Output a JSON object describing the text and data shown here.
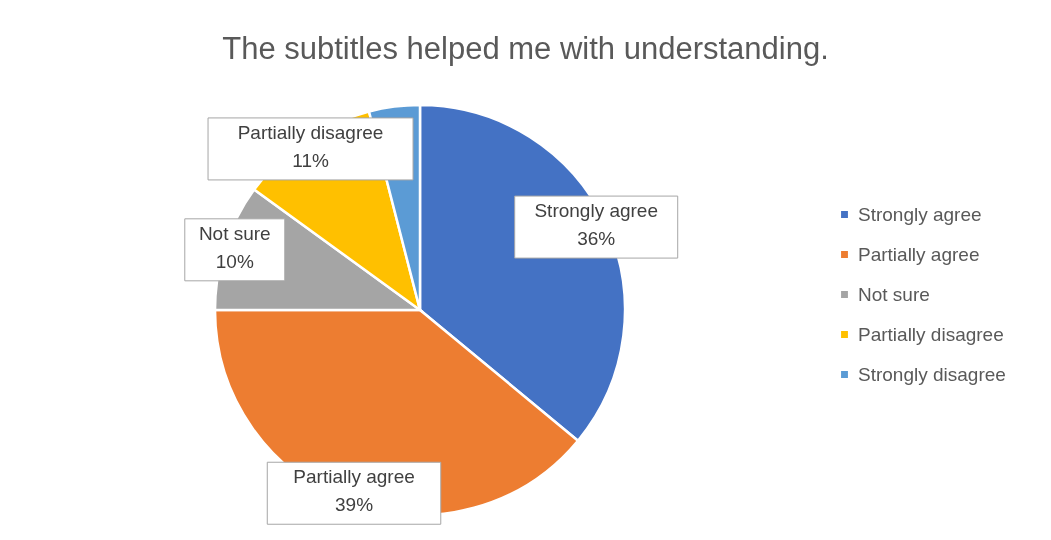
{
  "chart_data": {
    "type": "pie",
    "title": "The subtitles helped me with understanding.",
    "categories": [
      "Strongly agree",
      "Partially agree",
      "Not sure",
      "Partially disagree",
      "Strongly disagree"
    ],
    "values": [
      36,
      39,
      10,
      11,
      4
    ],
    "colors": [
      "#4472c4",
      "#ed7d31",
      "#a5a5a5",
      "#ffc000",
      "#5b9bd5"
    ],
    "value_labels": [
      "36%",
      "39%",
      "10%",
      "11%",
      null
    ],
    "legend": "right"
  }
}
